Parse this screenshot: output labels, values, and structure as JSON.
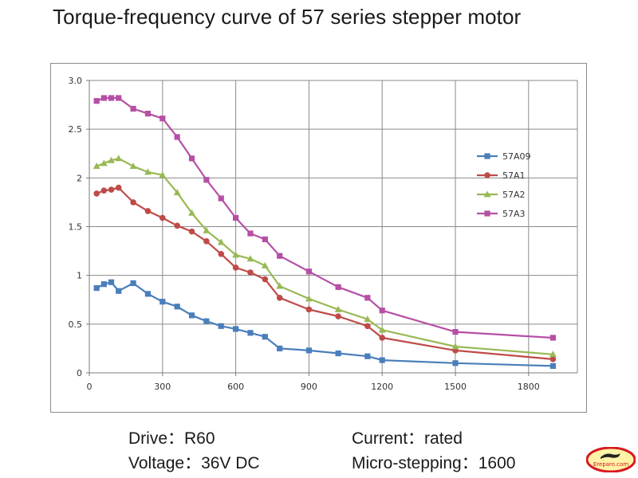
{
  "title": "Torque-frequency curve of 57 series stepper motor",
  "footer": {
    "drive": "Drive：R60",
    "voltage": "Voltage：36V DC",
    "current": "Current：rated",
    "micro_stepping": "Micro-stepping：1600"
  },
  "logo_text": "Ereparo.com",
  "chart_data": {
    "type": "line",
    "xlim": [
      0,
      2000
    ],
    "ylim": [
      0,
      3.0
    ],
    "x_ticks": [
      0,
      300,
      600,
      900,
      1200,
      1500,
      1800
    ],
    "y_ticks": [
      0,
      0.5,
      1,
      1.5,
      2,
      2.5,
      3.0
    ],
    "x_tick_labels": [
      "0",
      "300",
      "600",
      "900",
      "1200",
      "1500",
      "1800"
    ],
    "y_tick_labels": [
      "0",
      "0.5",
      "1",
      "1.5",
      "2",
      "2.5",
      "3.0"
    ],
    "grid": true,
    "legend_position": "right",
    "series": [
      {
        "name": "57A09",
        "color": "#4a7ebb",
        "marker": "square",
        "points": [
          [
            30,
            0.87
          ],
          [
            60,
            0.91
          ],
          [
            90,
            0.93
          ],
          [
            120,
            0.84
          ],
          [
            180,
            0.92
          ],
          [
            240,
            0.81
          ],
          [
            300,
            0.73
          ],
          [
            360,
            0.68
          ],
          [
            420,
            0.59
          ],
          [
            480,
            0.53
          ],
          [
            540,
            0.48
          ],
          [
            600,
            0.45
          ],
          [
            660,
            0.41
          ],
          [
            720,
            0.37
          ],
          [
            780,
            0.25
          ],
          [
            900,
            0.23
          ],
          [
            1020,
            0.2
          ],
          [
            1140,
            0.17
          ],
          [
            1200,
            0.13
          ],
          [
            1500,
            0.1
          ],
          [
            1900,
            0.07
          ]
        ]
      },
      {
        "name": "57A1",
        "color": "#be4b48",
        "marker": "circle",
        "points": [
          [
            30,
            1.84
          ],
          [
            60,
            1.87
          ],
          [
            90,
            1.88
          ],
          [
            120,
            1.9
          ],
          [
            180,
            1.75
          ],
          [
            240,
            1.66
          ],
          [
            300,
            1.59
          ],
          [
            360,
            1.51
          ],
          [
            420,
            1.45
          ],
          [
            480,
            1.35
          ],
          [
            540,
            1.22
          ],
          [
            600,
            1.08
          ],
          [
            660,
            1.03
          ],
          [
            720,
            0.96
          ],
          [
            780,
            0.77
          ],
          [
            900,
            0.65
          ],
          [
            1020,
            0.58
          ],
          [
            1140,
            0.48
          ],
          [
            1200,
            0.36
          ],
          [
            1500,
            0.23
          ],
          [
            1900,
            0.14
          ]
        ]
      },
      {
        "name": "57A2",
        "color": "#98b954",
        "marker": "triangle",
        "points": [
          [
            30,
            2.12
          ],
          [
            60,
            2.15
          ],
          [
            90,
            2.18
          ],
          [
            120,
            2.2
          ],
          [
            180,
            2.12
          ],
          [
            240,
            2.06
          ],
          [
            300,
            2.03
          ],
          [
            360,
            1.85
          ],
          [
            420,
            1.64
          ],
          [
            480,
            1.46
          ],
          [
            540,
            1.34
          ],
          [
            600,
            1.21
          ],
          [
            660,
            1.17
          ],
          [
            720,
            1.1
          ],
          [
            780,
            0.89
          ],
          [
            900,
            0.76
          ],
          [
            1020,
            0.65
          ],
          [
            1140,
            0.55
          ],
          [
            1200,
            0.44
          ],
          [
            1500,
            0.27
          ],
          [
            1900,
            0.19
          ]
        ]
      },
      {
        "name": "57A3",
        "color": "#b64fa5",
        "marker": "square",
        "points": [
          [
            30,
            2.79
          ],
          [
            60,
            2.82
          ],
          [
            90,
            2.82
          ],
          [
            120,
            2.82
          ],
          [
            180,
            2.71
          ],
          [
            240,
            2.66
          ],
          [
            300,
            2.61
          ],
          [
            360,
            2.42
          ],
          [
            420,
            2.2
          ],
          [
            480,
            1.98
          ],
          [
            540,
            1.79
          ],
          [
            600,
            1.59
          ],
          [
            660,
            1.43
          ],
          [
            720,
            1.37
          ],
          [
            780,
            1.2
          ],
          [
            900,
            1.04
          ],
          [
            1020,
            0.88
          ],
          [
            1140,
            0.77
          ],
          [
            1200,
            0.64
          ],
          [
            1500,
            0.42
          ],
          [
            1900,
            0.36
          ]
        ]
      }
    ]
  }
}
